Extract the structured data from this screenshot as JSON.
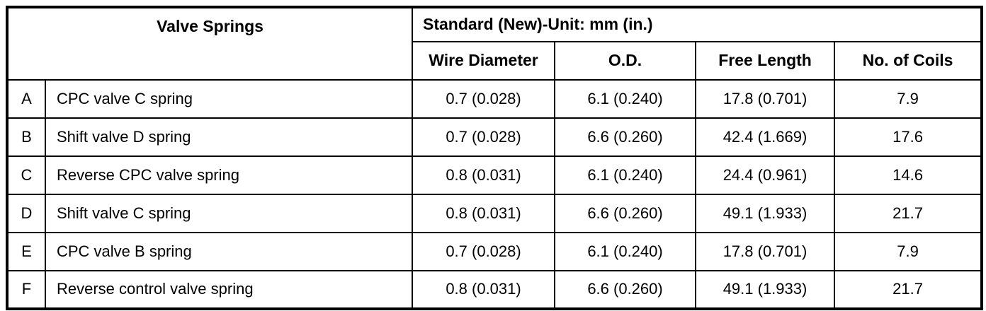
{
  "table": {
    "title": "Valve Springs",
    "spec_header": "Standard (New)-Unit: mm (in.)",
    "columns": [
      "Wire Diameter",
      "O.D.",
      "Free Length",
      "No. of Coils"
    ],
    "rows": [
      {
        "id": "A",
        "name": "CPC valve C spring",
        "wire_diameter": "0.7 (0.028)",
        "od": "6.1 (0.240)",
        "free_length": "17.8 (0.701)",
        "coils": "7.9"
      },
      {
        "id": "B",
        "name": "Shift valve D spring",
        "wire_diameter": "0.7 (0.028)",
        "od": "6.6 (0.260)",
        "free_length": "42.4 (1.669)",
        "coils": "17.6"
      },
      {
        "id": "C",
        "name": "Reverse CPC valve spring",
        "wire_diameter": "0.8 (0.031)",
        "od": "6.1 (0.240)",
        "free_length": "24.4 (0.961)",
        "coils": "14.6"
      },
      {
        "id": "D",
        "name": "Shift valve C spring",
        "wire_diameter": "0.8 (0.031)",
        "od": "6.6 (0.260)",
        "free_length": "49.1 (1.933)",
        "coils": "21.7"
      },
      {
        "id": "E",
        "name": "CPC valve B spring",
        "wire_diameter": "0.7 (0.028)",
        "od": "6.1 (0.240)",
        "free_length": "17.8 (0.701)",
        "coils": "7.9"
      },
      {
        "id": "F",
        "name": "Reverse control valve spring",
        "wire_diameter": "0.8 (0.031)",
        "od": "6.6 (0.260)",
        "free_length": "49.1 (1.933)",
        "coils": "21.7"
      }
    ]
  }
}
